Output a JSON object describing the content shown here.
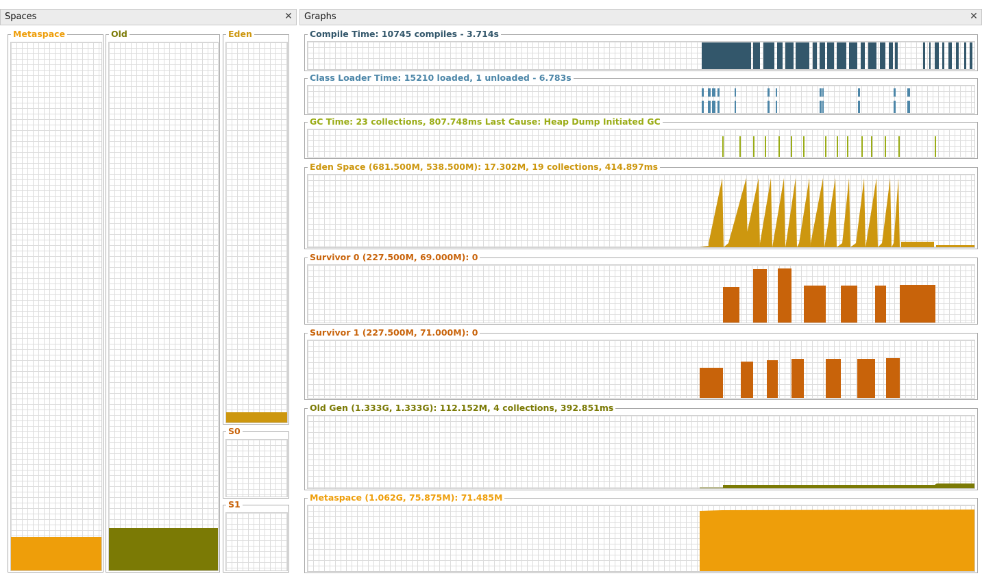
{
  "spaces_panel": {
    "title": "Spaces",
    "close_icon": "close-icon"
  },
  "graphs_panel": {
    "title": "Graphs",
    "close_icon": "close-icon"
  },
  "spaces": [
    {
      "id": "metaspace",
      "label": "Metaspace",
      "color": "#ee9e0a",
      "fill_fraction": 0.065
    },
    {
      "id": "old",
      "label": "Old",
      "color": "#7b7a05",
      "fill_fraction": 0.082
    },
    {
      "id": "eden",
      "label": "Eden",
      "color": "#cd970f",
      "fill_fraction": 0.03
    },
    {
      "id": "s0",
      "label": "S0",
      "color": "#c8630a",
      "fill_fraction": 0
    },
    {
      "id": "s1",
      "label": "S1",
      "color": "#c8630a",
      "fill_fraction": 0
    }
  ],
  "colors": {
    "compile": "#33576b",
    "classloader": "#4c86a8",
    "gc": "#9aac16",
    "eden": "#cd970f",
    "survivor": "#c8630a",
    "oldgen": "#7b7a05",
    "metaspace": "#ee9e0a"
  },
  "graphs": [
    {
      "id": "compile",
      "label": "Compile Time: 10745 compiles - 3.714s"
    },
    {
      "id": "classloader",
      "label": "Class Loader Time: 15210 loaded, 1 unloaded - 6.783s"
    },
    {
      "id": "gc",
      "label": "GC Time: 23 collections, 807.748ms Last Cause: Heap Dump Initiated GC"
    },
    {
      "id": "eden",
      "label": "Eden Space (681.500M, 538.500M): 17.302M, 19 collections, 414.897ms"
    },
    {
      "id": "survivor0",
      "label": "Survivor 0 (227.500M, 69.000M): 0"
    },
    {
      "id": "survivor1",
      "label": "Survivor 1 (227.500M, 71.000M): 0"
    },
    {
      "id": "oldgen",
      "label": "Old Gen (1.333G, 1.333G): 112.152M, 4 collections, 392.851ms"
    },
    {
      "id": "metaspace",
      "label": "Metaspace (1.062G, 75.875M): 71.485M"
    }
  ]
}
